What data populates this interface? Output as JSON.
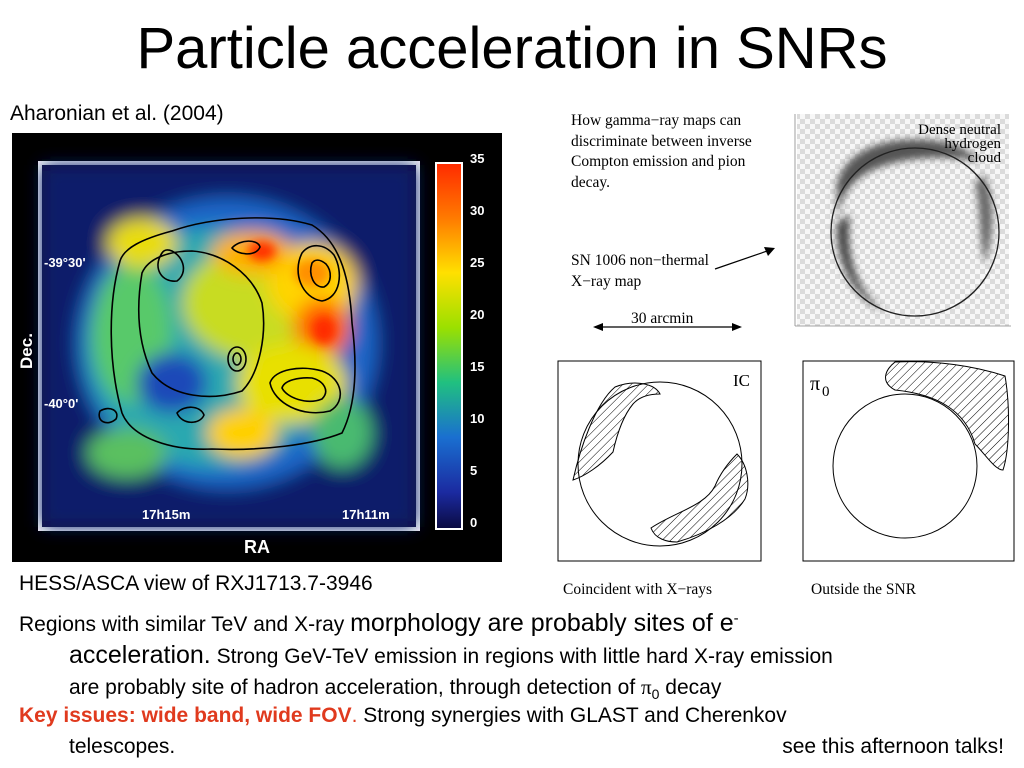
{
  "title": "Particle acceleration in SNRs",
  "citation": "Aharonian et al. (2004)",
  "hess_map": {
    "y_axis_label": "Dec.",
    "x_axis_label": "RA",
    "y_ticks": [
      "-39°30'",
      "-40°0'"
    ],
    "x_ticks": [
      "17h15m",
      "17h11m"
    ],
    "colorbar_ticks": [
      "35",
      "30",
      "25",
      "20",
      "15",
      "10",
      "5",
      "0"
    ]
  },
  "diagram": {
    "explain": [
      "How gamma−ray maps can",
      "discriminate between inverse",
      "Compton emission and pion",
      "decay."
    ],
    "sn_label": [
      "SN 1006 non−thermal",
      "X−ray map"
    ],
    "scale_label": "30 arcmin",
    "cloud_label": [
      "Dense neutral",
      "hydrogen",
      "cloud"
    ],
    "ic_label": "IC",
    "pi_symbol": "π",
    "pi_sub": "0",
    "caption_left": "Coincident with X−rays",
    "caption_right": "Outside the SNR"
  },
  "caption": "HESS/ASCA view of RXJ1713.7-3946",
  "p1": {
    "a": "Regions with similar TeV and X-ray ",
    "b": "morphology are probably sites of e",
    "sup": "-",
    "c": "acceleration.",
    "d": " Strong GeV-TeV emission in regions with little hard X-ray emission",
    "e": "are probably site of hadron acceleration, through detection of ",
    "pi": "π",
    "pi_sub": "0",
    "f": " decay"
  },
  "p2": {
    "key": "Key issues: wide band, wide FOV",
    "dot": ".",
    "rest": " Strong synergies with GLAST and Cherenkov",
    "tail": "telescopes.",
    "right": "see this afternoon talks!"
  }
}
